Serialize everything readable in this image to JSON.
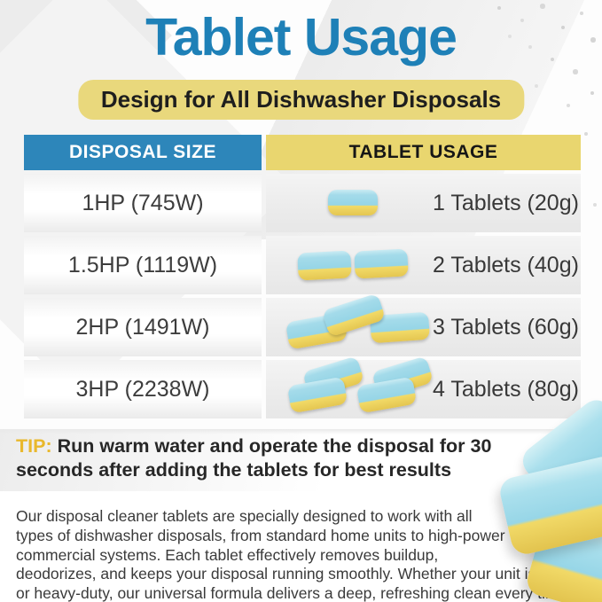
{
  "page": {
    "title": "Tablet Usage",
    "banner": "Design for All Dishwasher Disposals"
  },
  "table": {
    "headers": {
      "size": "DISPOSAL SIZE",
      "usage": "TABLET USAGE"
    },
    "rows": [
      {
        "size": "1HP (745W)",
        "tablet_count": 1,
        "usage": "1 Tablets (20g)"
      },
      {
        "size": "1.5HP (1119W)",
        "tablet_count": 2,
        "usage": "2 Tablets (40g)"
      },
      {
        "size": "2HP (1491W)",
        "tablet_count": 3,
        "usage": "3 Tablets (60g)"
      },
      {
        "size": "3HP (2238W)",
        "tablet_count": 4,
        "usage": "4 Tablets (80g)"
      }
    ]
  },
  "tip": {
    "label": "TIP:",
    "text": " Run warm water and operate the disposal for 30 seconds after adding the tablets for best results"
  },
  "description": "Our disposal cleaner tablets are specially designed to work with all types of dishwasher disposals, from standard home units to high-power commercial systems. Each tablet effectively removes buildup, deodorizes, and keeps your disposal running smoothly. Whether your unit is small or heavy-duty, our universal formula delivers a deep, refreshing clean every time",
  "colors": {
    "title_blue": "#1e80b7",
    "banner_yellow": "#e9d87c",
    "header_blue": "#2d86ba",
    "header_yellow": "#e9d66f",
    "tip_gold": "#e9b82c",
    "tablet_blue": "#96d5e6",
    "tablet_yellow": "#f2da67",
    "text_dark": "#2f2f2f"
  }
}
